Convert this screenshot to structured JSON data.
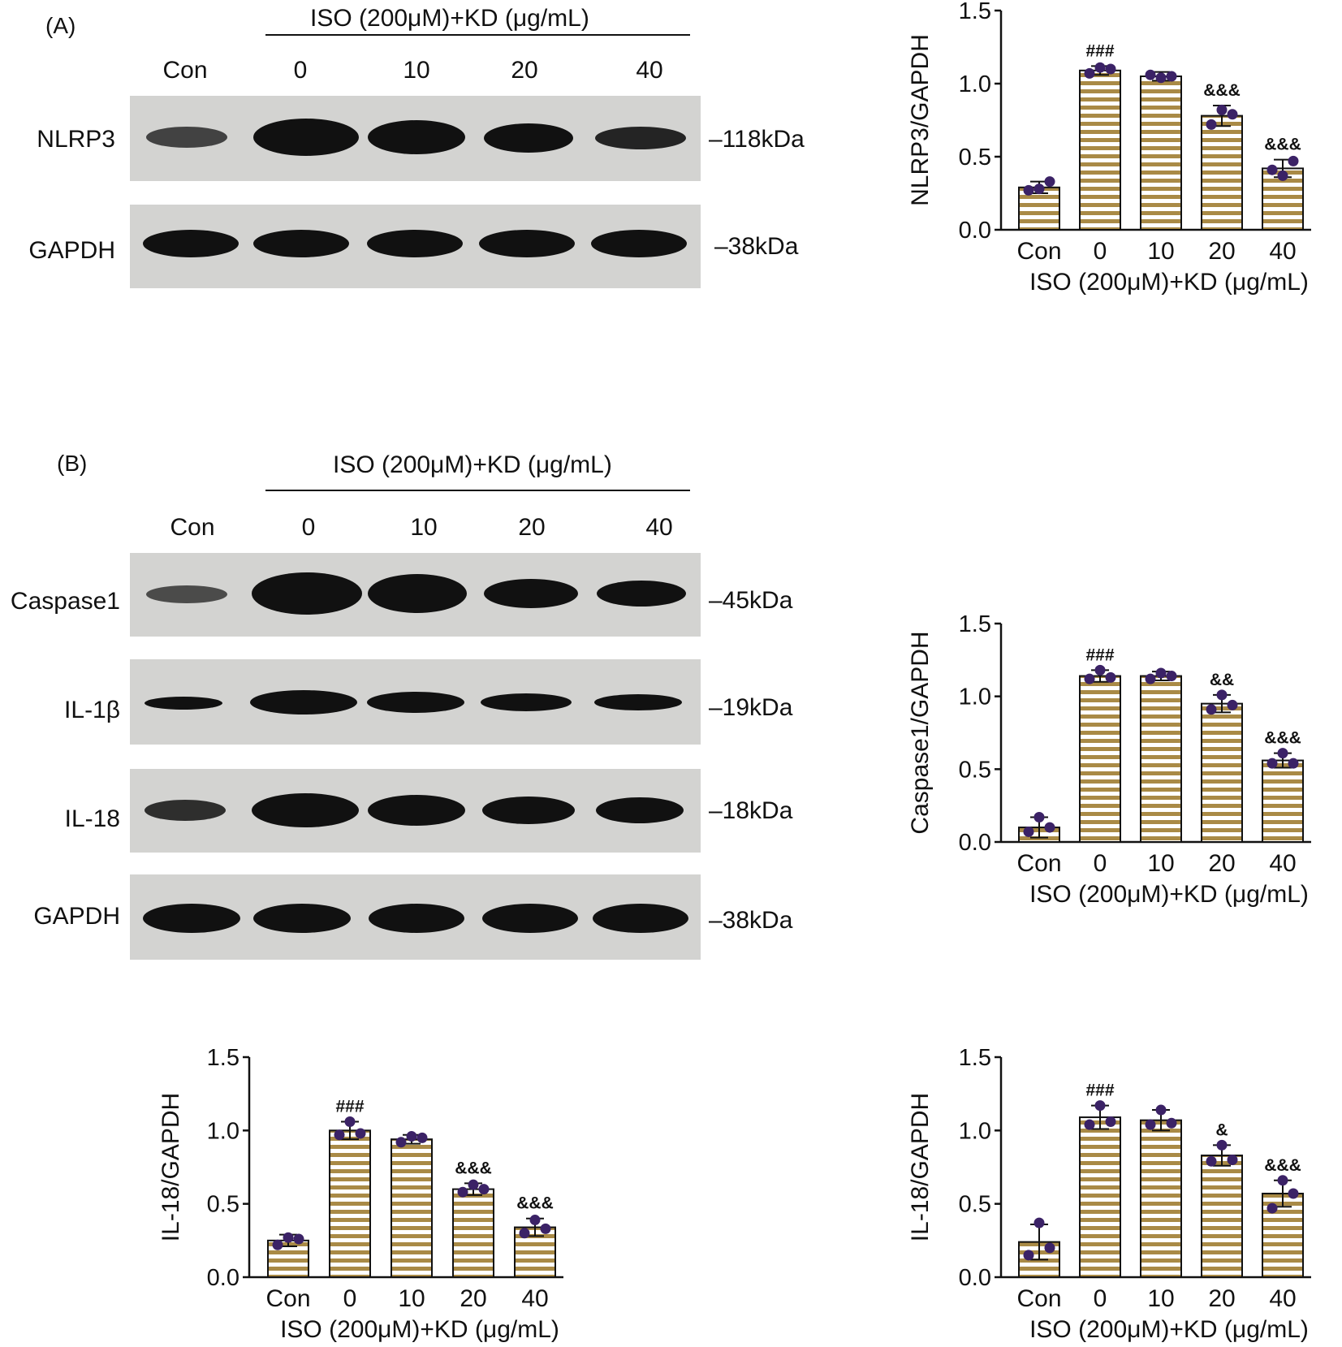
{
  "group_label": "ISO (200μM)+KD (μg/mL)",
  "lanes": [
    "Con",
    "0",
    "10",
    "20",
    "40"
  ],
  "panel_a": {
    "label": "(A)",
    "blots": [
      {
        "protein": "NLRP3",
        "mw": "–118kDa"
      },
      {
        "protein": "GAPDH",
        "mw": "–38kDa"
      }
    ]
  },
  "panel_b": {
    "label": "(B)",
    "blots": [
      {
        "protein": "Caspase1",
        "mw": "–45kDa"
      },
      {
        "protein": "IL-1β",
        "mw": "–19kDa"
      },
      {
        "protein": "IL-18",
        "mw": "–18kDa"
      },
      {
        "protein": "GAPDH",
        "mw": "–38kDa"
      }
    ]
  },
  "colors": {
    "bar_stripe": "#a98a46",
    "point": "#3b2266",
    "axis": "#111111"
  },
  "chart_data": [
    {
      "type": "bar",
      "ylabel": "NLRP3/GAPDH",
      "xlabel": "ISO (200μM)+KD (μg/mL)",
      "categories": [
        "Con",
        "0",
        "10",
        "20",
        "40"
      ],
      "values": [
        0.29,
        1.09,
        1.05,
        0.78,
        0.42
      ],
      "errors": [
        0.04,
        0.03,
        0.03,
        0.07,
        0.06
      ],
      "points": [
        [
          0.28,
          0.27,
          0.33
        ],
        [
          1.11,
          1.07,
          1.1
        ],
        [
          1.04,
          1.06,
          1.05
        ],
        [
          0.82,
          0.72,
          0.79
        ],
        [
          0.37,
          0.41,
          0.47
        ]
      ],
      "annotations": [
        "",
        "###",
        "",
        "&&&",
        "&&&"
      ],
      "ylim": [
        0,
        1.5
      ],
      "yticks": [
        "0.0",
        "0.5",
        "1.0",
        "1.5"
      ]
    },
    {
      "type": "bar",
      "ylabel": "Caspase1/GAPDH",
      "xlabel": "ISO (200μM)+KD (μg/mL)",
      "categories": [
        "Con",
        "0",
        "10",
        "20",
        "40"
      ],
      "values": [
        0.1,
        1.14,
        1.14,
        0.95,
        0.56
      ],
      "errors": [
        0.07,
        0.04,
        0.03,
        0.06,
        0.05
      ],
      "points": [
        [
          0.17,
          0.07,
          0.1
        ],
        [
          1.18,
          1.12,
          1.13
        ],
        [
          1.16,
          1.12,
          1.14
        ],
        [
          1.01,
          0.91,
          0.94
        ],
        [
          0.61,
          0.54,
          0.54
        ]
      ],
      "annotations": [
        "",
        "###",
        "",
        "&&",
        "&&&"
      ],
      "ylim": [
        0,
        1.5
      ],
      "yticks": [
        "0.0",
        "0.5",
        "1.0",
        "1.5"
      ]
    },
    {
      "type": "bar",
      "ylabel": "IL-18/GAPDH",
      "xlabel": "ISO (200μM)+KD (μg/mL)",
      "categories": [
        "Con",
        "0",
        "10",
        "20",
        "40"
      ],
      "values": [
        0.25,
        1.0,
        0.94,
        0.6,
        0.34
      ],
      "errors": [
        0.04,
        0.06,
        0.03,
        0.04,
        0.06
      ],
      "points": [
        [
          0.27,
          0.22,
          0.26
        ],
        [
          1.06,
          0.97,
          0.98
        ],
        [
          0.96,
          0.92,
          0.95
        ],
        [
          0.63,
          0.58,
          0.6
        ],
        [
          0.39,
          0.3,
          0.33
        ]
      ],
      "annotations": [
        "",
        "###",
        "",
        "&&&",
        "&&&"
      ],
      "ylim": [
        0,
        1.5
      ],
      "yticks": [
        "0.0",
        "0.5",
        "1.0",
        "1.5"
      ]
    },
    {
      "type": "bar",
      "ylabel": "IL-18/GAPDH",
      "xlabel": "ISO (200μM)+KD (μg/mL)",
      "categories": [
        "Con",
        "0",
        "10",
        "20",
        "40"
      ],
      "values": [
        0.24,
        1.09,
        1.07,
        0.83,
        0.57
      ],
      "errors": [
        0.12,
        0.08,
        0.07,
        0.07,
        0.09
      ],
      "points": [
        [
          0.37,
          0.15,
          0.2
        ],
        [
          1.17,
          1.04,
          1.06
        ],
        [
          1.14,
          1.04,
          1.05
        ],
        [
          0.9,
          0.79,
          0.8
        ],
        [
          0.66,
          0.47,
          0.57
        ]
      ],
      "annotations": [
        "",
        "###",
        "",
        "&",
        "&&&"
      ],
      "ylim": [
        0,
        1.5
      ],
      "yticks": [
        "0.0",
        "0.5",
        "1.0",
        "1.5"
      ]
    }
  ]
}
